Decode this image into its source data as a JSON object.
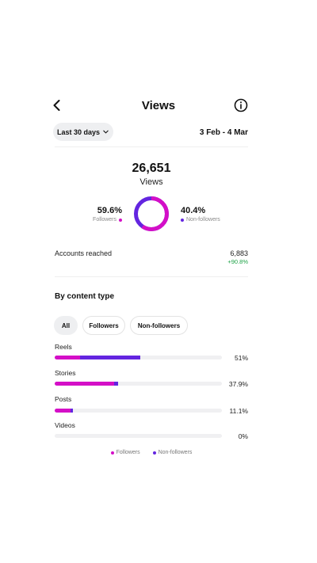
{
  "header": {
    "title": "Views"
  },
  "range": {
    "selected": "Last 30 days",
    "dates": "3 Feb - 4 Mar"
  },
  "summary": {
    "views_value": "26,651",
    "views_label": "Views",
    "followers_pct": "59.6%",
    "followers_label": "Followers",
    "nonfollowers_pct": "40.4%",
    "nonfollowers_label": "Non-followers",
    "followers_share": 0.596
  },
  "reach": {
    "label": "Accounts reached",
    "value": "6,883",
    "change": "+90.8%"
  },
  "content": {
    "section_title": "By content type",
    "filters": [
      "All",
      "Followers",
      "Non-followers"
    ],
    "rows": [
      {
        "label": "Reels",
        "pct_text": "51%",
        "followers_share": 0.15,
        "nonfollowers_share": 0.36
      },
      {
        "label": "Stories",
        "pct_text": "37.9%",
        "followers_share": 0.357,
        "nonfollowers_share": 0.022
      },
      {
        "label": "Posts",
        "pct_text": "11.1%",
        "followers_share": 0.095,
        "nonfollowers_share": 0.016
      },
      {
        "label": "Videos",
        "pct_text": "0%",
        "followers_share": 0,
        "nonfollowers_share": 0
      }
    ]
  },
  "legend": {
    "followers": "Followers",
    "nonfollowers": "Non-followers"
  },
  "colors": {
    "followers": "#d40fc7",
    "nonfollowers": "#6325e0",
    "positive": "#1fa348"
  }
}
